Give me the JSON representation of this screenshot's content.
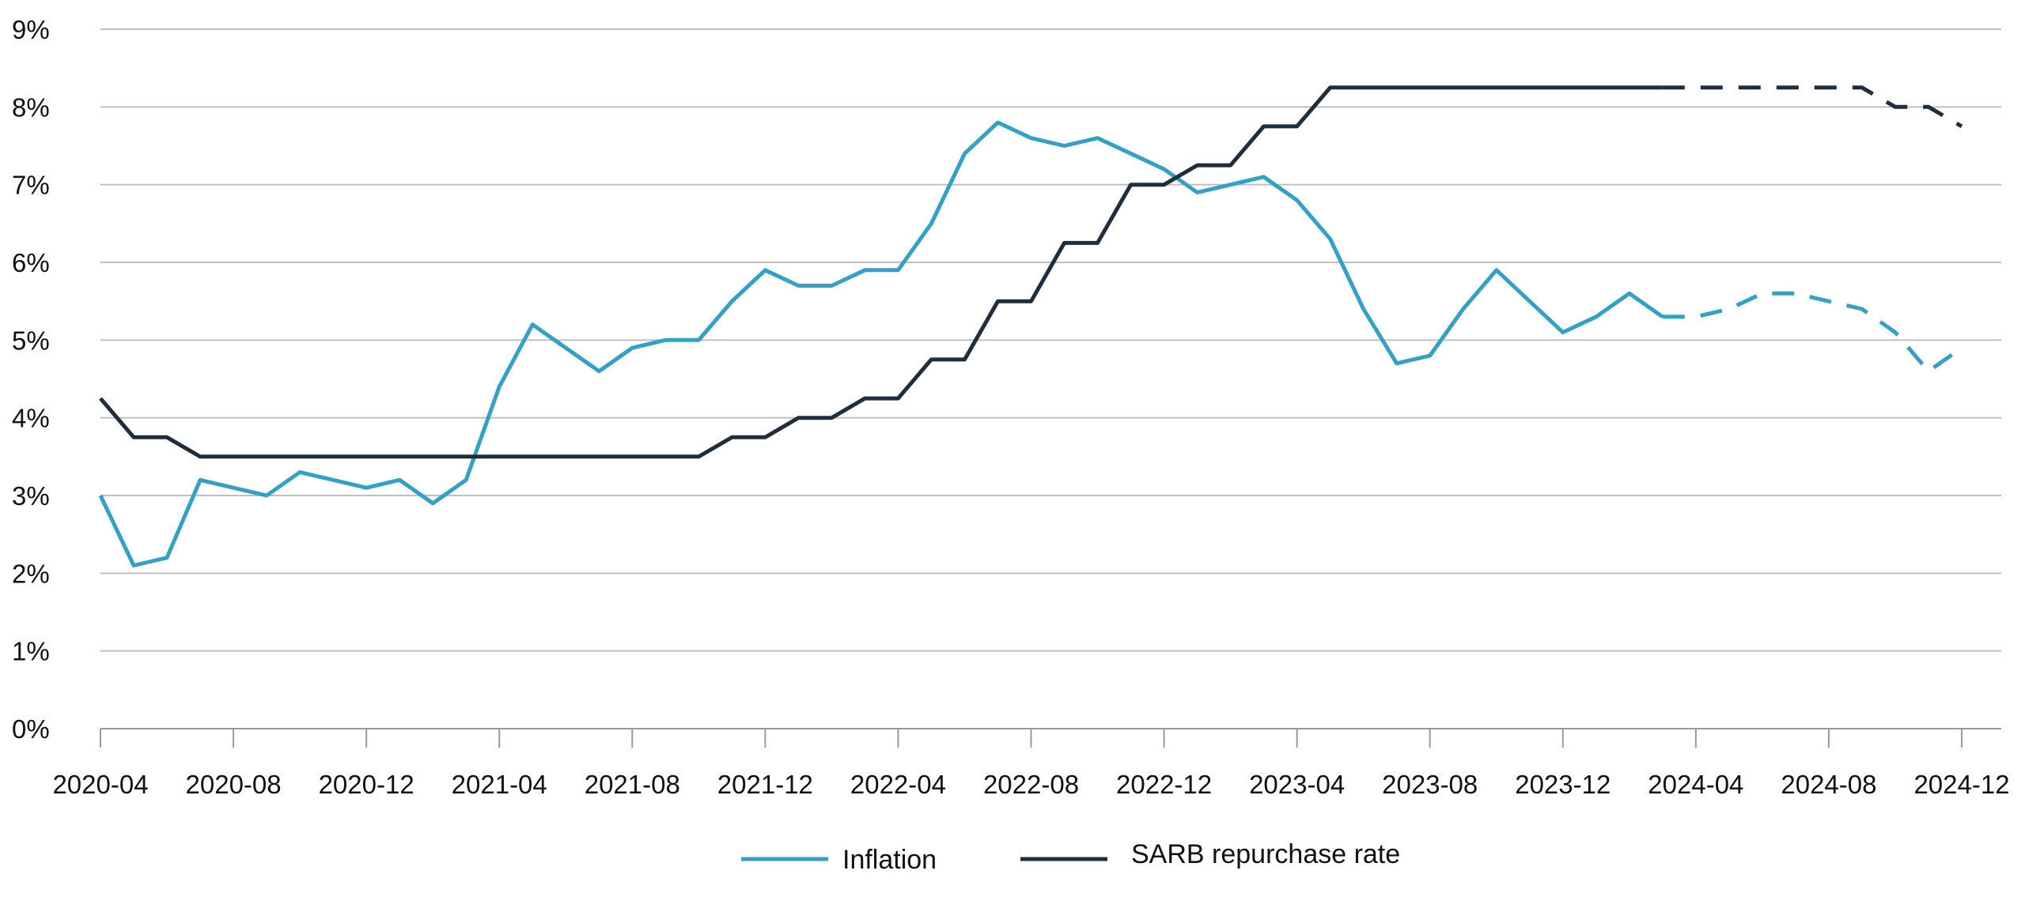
{
  "colors": {
    "inflation": "#33A0C8",
    "repo": "#1F2D3D",
    "grid": "#BFBFBF",
    "axis": "#999999",
    "text": "#111111"
  },
  "chart_data": {
    "type": "line",
    "x_format": "YYYY-MM (monthly)",
    "x_ticks": [
      "2020-04",
      "2020-08",
      "2020-12",
      "2021-04",
      "2021-08",
      "2021-12",
      "2022-04",
      "2022-08",
      "2022-12",
      "2023-04",
      "2023-08",
      "2023-12",
      "2024-04",
      "2024-08",
      "2024-12"
    ],
    "y_ticks": [
      "0%",
      "1%",
      "2%",
      "3%",
      "4%",
      "5%",
      "6%",
      "7%",
      "8%",
      "9%"
    ],
    "ylim": [
      0,
      9
    ],
    "grid": true,
    "legend_position": "bottom-center",
    "series": [
      {
        "name": "Inflation",
        "style": "solid",
        "data": [
          [
            "2020-04",
            3.0
          ],
          [
            "2020-05",
            2.1
          ],
          [
            "2020-06",
            2.2
          ],
          [
            "2020-07",
            3.2
          ],
          [
            "2020-08",
            3.1
          ],
          [
            "2020-09",
            3.0
          ],
          [
            "2020-10",
            3.3
          ],
          [
            "2020-11",
            3.2
          ],
          [
            "2020-12",
            3.1
          ],
          [
            "2021-01",
            3.2
          ],
          [
            "2021-02",
            2.9
          ],
          [
            "2021-03",
            3.2
          ],
          [
            "2021-04",
            4.4
          ],
          [
            "2021-05",
            5.2
          ],
          [
            "2021-06",
            4.9
          ],
          [
            "2021-07",
            4.6
          ],
          [
            "2021-08",
            4.9
          ],
          [
            "2021-09",
            5.0
          ],
          [
            "2021-10",
            5.0
          ],
          [
            "2021-11",
            5.5
          ],
          [
            "2021-12",
            5.9
          ],
          [
            "2022-01",
            5.7
          ],
          [
            "2022-02",
            5.7
          ],
          [
            "2022-03",
            5.9
          ],
          [
            "2022-04",
            5.9
          ],
          [
            "2022-05",
            6.5
          ],
          [
            "2022-06",
            7.4
          ],
          [
            "2022-07",
            7.8
          ],
          [
            "2022-08",
            7.6
          ],
          [
            "2022-09",
            7.5
          ],
          [
            "2022-10",
            7.6
          ],
          [
            "2022-11",
            7.4
          ],
          [
            "2022-12",
            7.2
          ],
          [
            "2023-01",
            6.9
          ],
          [
            "2023-02",
            7.0
          ],
          [
            "2023-03",
            7.1
          ],
          [
            "2023-04",
            6.8
          ],
          [
            "2023-05",
            6.3
          ],
          [
            "2023-06",
            5.4
          ],
          [
            "2023-07",
            4.7
          ],
          [
            "2023-08",
            4.8
          ],
          [
            "2023-09",
            5.4
          ],
          [
            "2023-10",
            5.9
          ],
          [
            "2023-11",
            5.5
          ],
          [
            "2023-12",
            5.1
          ],
          [
            "2024-01",
            5.3
          ],
          [
            "2024-02",
            5.6
          ],
          [
            "2024-03",
            5.3
          ]
        ]
      },
      {
        "name": "Inflation",
        "style": "dashed",
        "data": [
          [
            "2024-03",
            5.3
          ],
          [
            "2024-04",
            5.3
          ],
          [
            "2024-05",
            5.4
          ],
          [
            "2024-06",
            5.6
          ],
          [
            "2024-07",
            5.6
          ],
          [
            "2024-08",
            5.5
          ],
          [
            "2024-09",
            5.4
          ],
          [
            "2024-10",
            5.1
          ],
          [
            "2024-11",
            4.6
          ],
          [
            "2024-12",
            4.9
          ]
        ]
      },
      {
        "name": "SARB repurchase rate",
        "style": "solid",
        "data": [
          [
            "2020-04",
            4.25
          ],
          [
            "2020-05",
            3.75
          ],
          [
            "2020-06",
            3.75
          ],
          [
            "2020-07",
            3.5
          ],
          [
            "2020-08",
            3.5
          ],
          [
            "2020-09",
            3.5
          ],
          [
            "2020-10",
            3.5
          ],
          [
            "2020-11",
            3.5
          ],
          [
            "2020-12",
            3.5
          ],
          [
            "2021-01",
            3.5
          ],
          [
            "2021-02",
            3.5
          ],
          [
            "2021-03",
            3.5
          ],
          [
            "2021-04",
            3.5
          ],
          [
            "2021-05",
            3.5
          ],
          [
            "2021-06",
            3.5
          ],
          [
            "2021-07",
            3.5
          ],
          [
            "2021-08",
            3.5
          ],
          [
            "2021-09",
            3.5
          ],
          [
            "2021-10",
            3.5
          ],
          [
            "2021-11",
            3.75
          ],
          [
            "2021-12",
            3.75
          ],
          [
            "2022-01",
            4.0
          ],
          [
            "2022-02",
            4.0
          ],
          [
            "2022-03",
            4.25
          ],
          [
            "2022-04",
            4.25
          ],
          [
            "2022-05",
            4.75
          ],
          [
            "2022-06",
            4.75
          ],
          [
            "2022-07",
            5.5
          ],
          [
            "2022-08",
            5.5
          ],
          [
            "2022-09",
            6.25
          ],
          [
            "2022-10",
            6.25
          ],
          [
            "2022-11",
            7.0
          ],
          [
            "2022-12",
            7.0
          ],
          [
            "2023-01",
            7.25
          ],
          [
            "2023-02",
            7.25
          ],
          [
            "2023-03",
            7.75
          ],
          [
            "2023-04",
            7.75
          ],
          [
            "2023-05",
            8.25
          ],
          [
            "2023-06",
            8.25
          ],
          [
            "2023-07",
            8.25
          ],
          [
            "2023-08",
            8.25
          ],
          [
            "2023-09",
            8.25
          ],
          [
            "2023-10",
            8.25
          ],
          [
            "2023-11",
            8.25
          ],
          [
            "2023-12",
            8.25
          ],
          [
            "2024-01",
            8.25
          ],
          [
            "2024-02",
            8.25
          ],
          [
            "2024-03",
            8.25
          ]
        ]
      },
      {
        "name": "SARB repurchase rate",
        "style": "dashed",
        "data": [
          [
            "2024-03",
            8.25
          ],
          [
            "2024-04",
            8.25
          ],
          [
            "2024-05",
            8.25
          ],
          [
            "2024-06",
            8.25
          ],
          [
            "2024-07",
            8.25
          ],
          [
            "2024-08",
            8.25
          ],
          [
            "2024-09",
            8.25
          ],
          [
            "2024-10",
            8.0
          ],
          [
            "2024-11",
            8.0
          ],
          [
            "2024-12",
            7.75
          ]
        ]
      }
    ]
  },
  "legend": {
    "items": [
      {
        "label": "Inflation",
        "color": "#33A0C8"
      },
      {
        "label": "SARB repurchase rate",
        "color": "#1F2D3D"
      }
    ]
  }
}
